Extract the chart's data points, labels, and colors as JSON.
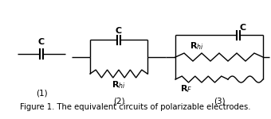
{
  "title": "Figure 1. The equivalent circuits of polarizable electrodes.",
  "background_color": "#ffffff",
  "line_color": "#000000",
  "fig_width": 3.4,
  "fig_height": 1.5,
  "dpi": 100,
  "labels": {
    "C1": "C",
    "C2": "C",
    "C3": "C",
    "Rhi2": "R$_{hi}$",
    "Rhi3": "R$_{hi}$",
    "RF3": "R$_{F}$",
    "n1": "(1)",
    "n2": "(2)",
    "n3": "(3)"
  }
}
